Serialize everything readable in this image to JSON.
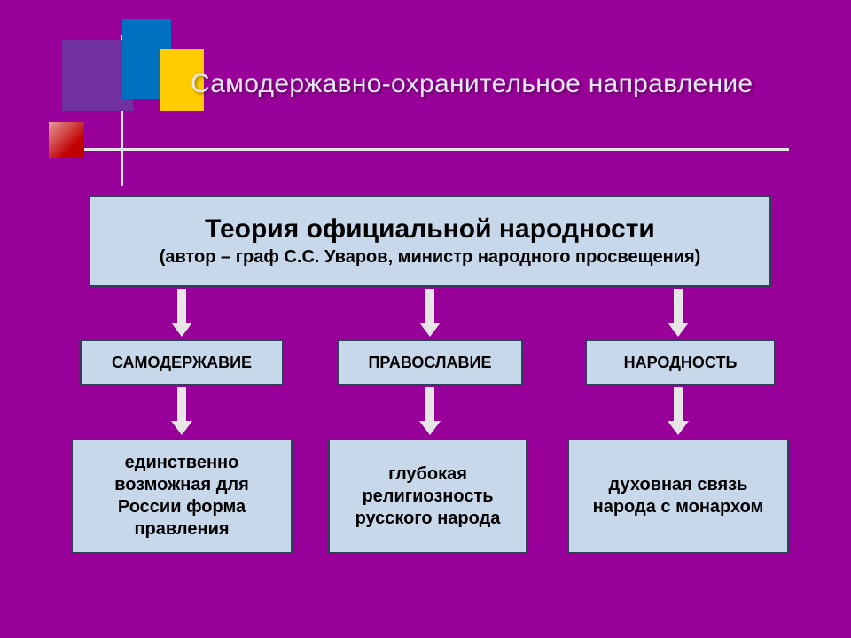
{
  "background_color": "#990099",
  "decor": {
    "squares": {
      "purple": "#7030a0",
      "blue": "#0070c0",
      "yellow": "#ffcc00",
      "red": "#c00000"
    },
    "line_color": "#e6e6e6"
  },
  "title": "Самодержавно-охранительное направление",
  "title_color": "#e6e6f5",
  "title_fontsize": 30,
  "box_fill": "#c7d8ea",
  "box_border": "#2f4158",
  "arrow_color": "#e6e6e6",
  "main": {
    "heading": "Теория официальной народности",
    "subheading": "(автор – граф С.С. Уваров, министр народного просвещения)",
    "heading_fontsize": 30,
    "subheading_fontsize": 20
  },
  "columns": [
    {
      "concept": "САМОДЕРЖАВИЕ",
      "description": "единственно возможная для России форма правления"
    },
    {
      "concept": "ПРАВОСЛАВИЕ",
      "description": "глубокая религиозность русского народа"
    },
    {
      "concept": "НАРОДНОСТЬ",
      "description": "духовная связь народа с монархом"
    }
  ],
  "mid_fontsize": 18,
  "bot_fontsize": 20
}
